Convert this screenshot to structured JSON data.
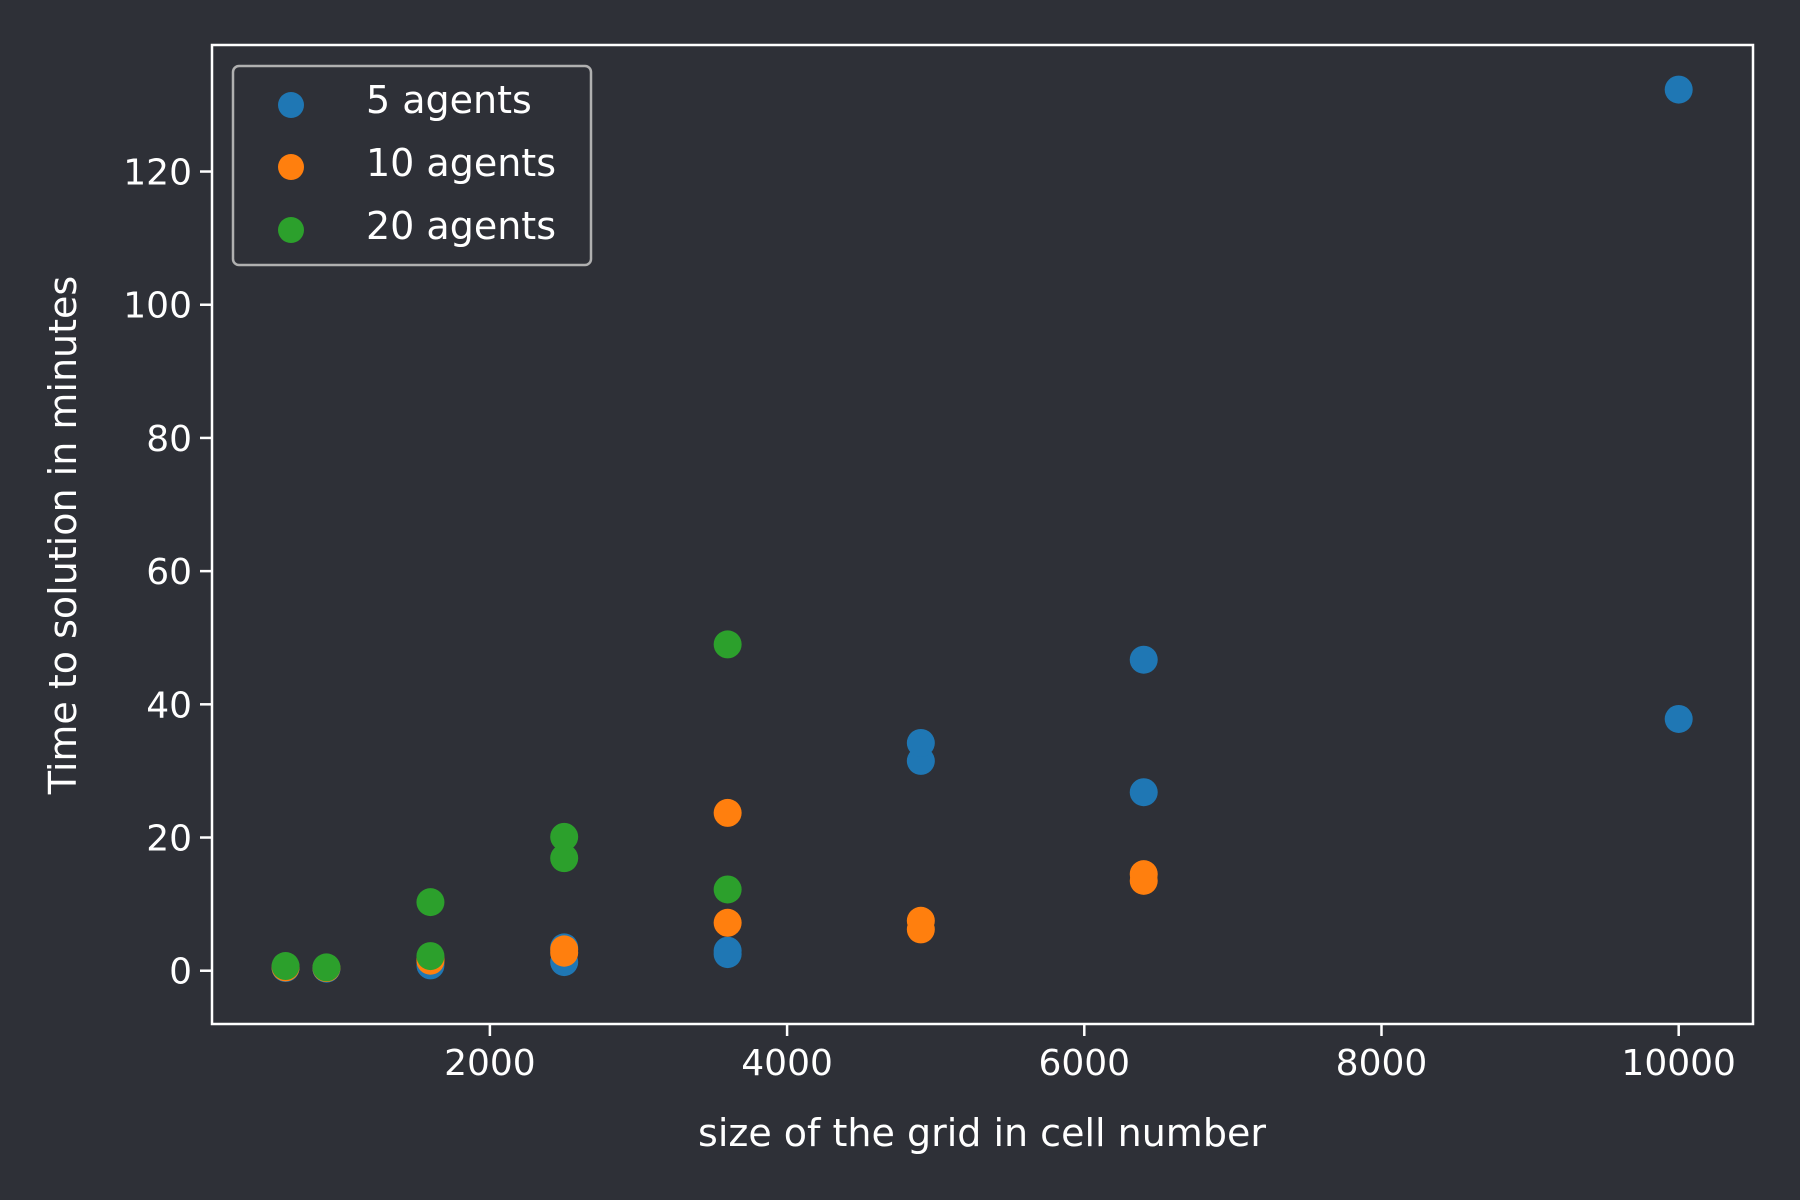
{
  "chart_data": {
    "type": "scatter",
    "title": "",
    "xlabel": "size of the grid in cell number",
    "ylabel": "Time to solution in minutes",
    "xlim": [
      130,
      10500
    ],
    "ylim": [
      -8,
      139
    ],
    "xticks": [
      2000,
      4000,
      6000,
      8000,
      10000
    ],
    "yticks": [
      0,
      20,
      40,
      60,
      80,
      100,
      120
    ],
    "grid": false,
    "legend_position": "top-left",
    "series": [
      {
        "name": "5 agents",
        "color": "#1f77b4",
        "points": [
          [
            625,
            0.4
          ],
          [
            900,
            0.3
          ],
          [
            1600,
            0.8
          ],
          [
            1600,
            1.2
          ],
          [
            2500,
            1.3
          ],
          [
            2500,
            3.5
          ],
          [
            3600,
            2.5
          ],
          [
            3600,
            3.0
          ],
          [
            4900,
            31.5
          ],
          [
            4900,
            34.2
          ],
          [
            6400,
            26.8
          ],
          [
            6400,
            46.7
          ],
          [
            10000,
            37.8
          ],
          [
            10000,
            132.3
          ]
        ]
      },
      {
        "name": "10 agents",
        "color": "#ff7f0e",
        "points": [
          [
            625,
            0.5
          ],
          [
            900,
            0.4
          ],
          [
            1600,
            1.5
          ],
          [
            1600,
            1.8
          ],
          [
            2500,
            2.7
          ],
          [
            2500,
            3.2
          ],
          [
            3600,
            7.2
          ],
          [
            3600,
            23.7
          ],
          [
            4900,
            6.2
          ],
          [
            4900,
            7.5
          ],
          [
            6400,
            13.5
          ],
          [
            6400,
            14.5
          ]
        ]
      },
      {
        "name": "20 agents",
        "color": "#2ca02c",
        "points": [
          [
            625,
            0.7
          ],
          [
            900,
            0.5
          ],
          [
            1600,
            2.2
          ],
          [
            1600,
            10.3
          ],
          [
            2500,
            16.9
          ],
          [
            2500,
            20.1
          ],
          [
            3600,
            12.2
          ],
          [
            3600,
            49.0
          ]
        ]
      }
    ]
  }
}
